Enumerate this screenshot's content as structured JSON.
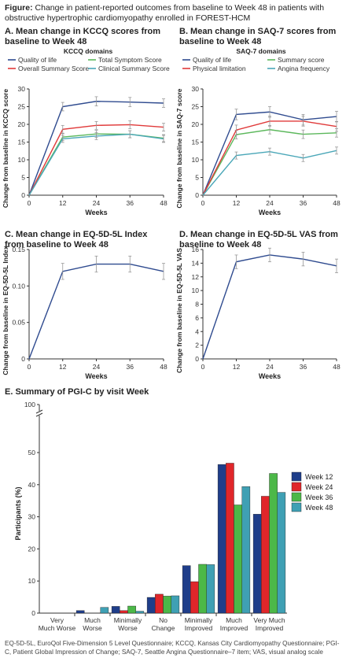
{
  "figure": {
    "label": "Figure:",
    "caption": "Change in patient-reported outcomes from baseline to Week 48 in patients with obstructive hypertrophic cardiomyopathy enrolled in FOREST-HCM"
  },
  "colors": {
    "dark_blue": "#2f4b8f",
    "red": "#e03a3a",
    "green": "#5cb85c",
    "teal": "#4aa7b8",
    "bar_w12": "#1f3e8a",
    "bar_w24": "#e0262a",
    "bar_w36": "#4cb848",
    "bar_w48": "#3fa0b4"
  },
  "chart_data": [
    {
      "id": "A",
      "type": "line",
      "title": "A. Mean change in KCCQ scores from baseline to Week 48",
      "legend_title": "KCCQ domains",
      "xlabel": "Weeks",
      "ylabel": "Change from baseline in KCCQ score",
      "x": [
        0,
        12,
        24,
        36,
        48
      ],
      "xlim": [
        0,
        48
      ],
      "ylim": [
        0,
        30
      ],
      "yticks": [
        0,
        5,
        10,
        15,
        20,
        25,
        30
      ],
      "series": [
        {
          "name": "Quality of life",
          "color": "#2f4b8f",
          "values": [
            0,
            25.0,
            26.5,
            26.3,
            26.0
          ],
          "err": [
            0,
            1.2,
            1.3,
            1.3,
            1.2
          ]
        },
        {
          "name": "Total Symptom Score",
          "color": "#5cb85c",
          "values": [
            0,
            16.4,
            17.3,
            17.2,
            16.1
          ],
          "err": [
            0,
            1.0,
            1.0,
            1.0,
            1.0
          ]
        },
        {
          "name": "Overall Summary Score",
          "color": "#e03a3a",
          "values": [
            0,
            18.6,
            19.7,
            19.9,
            19.2
          ],
          "err": [
            0,
            1.1,
            1.1,
            1.1,
            1.1
          ]
        },
        {
          "name": "Clinical Summary Score",
          "color": "#4aa7b8",
          "values": [
            0,
            15.9,
            16.7,
            17.2,
            15.9
          ],
          "err": [
            0,
            1.0,
            1.0,
            1.0,
            1.0
          ]
        }
      ]
    },
    {
      "id": "B",
      "type": "line",
      "title": "B. Mean change in SAQ-7 scores from baseline to Week 48",
      "legend_title": "SAQ-7 domains",
      "xlabel": "Weeks",
      "ylabel": "Change from baseline in SAQ-7 score",
      "x": [
        0,
        12,
        24,
        36,
        48
      ],
      "xlim": [
        0,
        48
      ],
      "ylim": [
        0,
        30
      ],
      "yticks": [
        0,
        5,
        10,
        15,
        20,
        25,
        30
      ],
      "series": [
        {
          "name": "Quality of life",
          "color": "#2f4b8f",
          "values": [
            0,
            22.8,
            23.5,
            21.3,
            22.2
          ],
          "err": [
            0,
            1.5,
            1.5,
            1.5,
            1.5
          ]
        },
        {
          "name": "Summary score",
          "color": "#5cb85c",
          "values": [
            0,
            17.1,
            18.5,
            17.2,
            17.6
          ],
          "err": [
            0,
            1.2,
            1.2,
            1.2,
            1.2
          ]
        },
        {
          "name": "Physical limitation",
          "color": "#e03a3a",
          "values": [
            0,
            18.4,
            20.9,
            20.9,
            19.4
          ],
          "err": [
            0,
            1.4,
            1.4,
            1.4,
            1.4
          ]
        },
        {
          "name": "Angina frequency",
          "color": "#4aa7b8",
          "values": [
            0,
            11.2,
            12.3,
            10.5,
            12.6
          ],
          "err": [
            0,
            1.0,
            1.0,
            1.0,
            1.0
          ]
        }
      ]
    },
    {
      "id": "C",
      "type": "line",
      "title": "C. Mean change in EQ-5D-5L Index from baseline to Week 48",
      "xlabel": "Weeks",
      "ylabel": "Change from baseline in EQ-5D-5L Index",
      "x": [
        0,
        12,
        24,
        36,
        48
      ],
      "xlim": [
        0,
        48
      ],
      "ylim": [
        0,
        0.15
      ],
      "yticks": [
        0,
        0.05,
        0.1,
        0.15
      ],
      "ytick_labels": [
        "0",
        "0.05",
        "0.10",
        "0.15"
      ],
      "series": [
        {
          "color": "#2f4b8f",
          "values": [
            0,
            0.12,
            0.13,
            0.13,
            0.12
          ],
          "err": [
            0,
            0.011,
            0.011,
            0.011,
            0.011
          ]
        }
      ]
    },
    {
      "id": "D",
      "type": "line",
      "title": "D. Mean change in EQ-5D-5L VAS from baseline to Week 48",
      "xlabel": "Weeks",
      "ylabel": "Change from baseline in EQ-5D-5L VAS",
      "x": [
        0,
        12,
        24,
        36,
        48
      ],
      "xlim": [
        0,
        48
      ],
      "ylim": [
        0,
        16
      ],
      "yticks": [
        0,
        2,
        4,
        6,
        8,
        10,
        12,
        14,
        16
      ],
      "series": [
        {
          "color": "#2f4b8f",
          "values": [
            0,
            14.2,
            15.2,
            14.6,
            13.6
          ],
          "err": [
            0,
            1.0,
            1.0,
            1.0,
            1.0
          ]
        }
      ]
    },
    {
      "id": "E",
      "type": "bar",
      "title": "E. Summary of PGI-C by visit Week",
      "ylabel": "Participants (%)",
      "ylim": [
        0,
        50
      ],
      "yticks": [
        0,
        10,
        20,
        30,
        40,
        50
      ],
      "top_tick_label": "100",
      "categories": [
        [
          "Very",
          "Much Worse"
        ],
        [
          "Much",
          "Worse"
        ],
        [
          "Minimally",
          "Worse"
        ],
        [
          "No",
          "Change"
        ],
        [
          "Minimally",
          "Improved"
        ],
        [
          "Much",
          "Improved"
        ],
        [
          "Very Much",
          "Improved"
        ]
      ],
      "legend_placement": "right",
      "series": [
        {
          "name": "Week 12",
          "color": "#1f3e8a",
          "values": [
            0,
            0.8,
            2.1,
            4.9,
            14.8,
            46.3,
            30.8
          ]
        },
        {
          "name": "Week 24",
          "color": "#e0262a",
          "values": [
            0,
            0,
            0.8,
            5.9,
            9.8,
            46.7,
            36.4
          ]
        },
        {
          "name": "Week 36",
          "color": "#4cb848",
          "values": [
            0,
            0,
            2.2,
            5.3,
            15.2,
            33.7,
            43.5
          ]
        },
        {
          "name": "Week 48",
          "color": "#3fa0b4",
          "values": [
            0,
            1.8,
            0.6,
            5.4,
            15.1,
            39.4,
            37.6
          ]
        }
      ]
    }
  ],
  "footnote": "EQ-5D-5L, EuroQol Five-Dimension 5 Level Questionnaire; KCCQ, Kansas City Cardiomyopathy Questionnaire; PGI-C, Patient Global Impression of Change; SAQ-7, Seattle Angina Questionnaire–7 item; VAS, visual analog scale"
}
